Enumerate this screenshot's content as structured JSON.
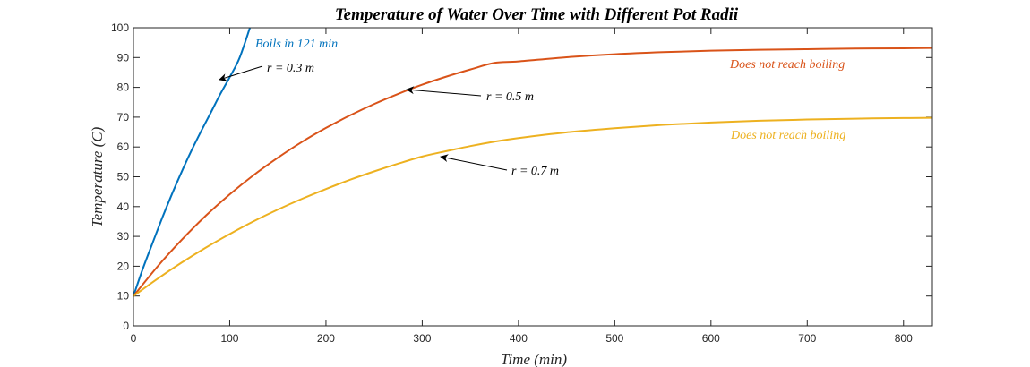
{
  "chart_data": {
    "type": "line",
    "title": "Temperature of Water Over Time with Different Pot Radii",
    "xlabel": "Time (min)",
    "ylabel": "Temperature (C)",
    "xlim": [
      0,
      830
    ],
    "ylim": [
      0,
      100
    ],
    "xticks": [
      0,
      100,
      200,
      300,
      400,
      500,
      600,
      700,
      800
    ],
    "yticks": [
      0,
      10,
      20,
      30,
      40,
      50,
      60,
      70,
      80,
      90,
      100
    ],
    "grid": false,
    "series": [
      {
        "name": "r = 0.3 m",
        "color": "#0072BD",
        "x": [
          0,
          10,
          20,
          30,
          40,
          50,
          60,
          70,
          80,
          90,
          100,
          110,
          121
        ],
        "y": [
          10,
          19.4,
          27.9,
          36.3,
          44.2,
          51.6,
          58.6,
          65.1,
          71.3,
          77.6,
          83.4,
          89.7,
          100
        ]
      },
      {
        "name": "r = 0.5 m",
        "color": "#D95319",
        "x": [
          0,
          25,
          50,
          75,
          100,
          125,
          150,
          175,
          200,
          225,
          250,
          275,
          300,
          325,
          350,
          375,
          400,
          450,
          500,
          550,
          600,
          650,
          700,
          750,
          800,
          830
        ],
        "y": [
          10,
          19.9,
          28.8,
          36.9,
          44.1,
          50.6,
          56.4,
          61.7,
          66.4,
          70.6,
          74.4,
          77.8,
          80.9,
          83.6,
          86.0,
          88.2,
          88.7,
          90.1,
          91.1,
          91.8,
          92.3,
          92.6,
          92.8,
          93.0,
          93.1,
          93.2
        ]
      },
      {
        "name": "r = 0.7 m",
        "color": "#EDB120",
        "x": [
          0,
          25,
          50,
          75,
          100,
          125,
          150,
          175,
          200,
          225,
          250,
          275,
          300,
          325,
          350,
          375,
          400,
          450,
          500,
          550,
          600,
          650,
          700,
          750,
          800,
          830
        ],
        "y": [
          10,
          15.8,
          21.2,
          26.2,
          30.8,
          35.1,
          39.0,
          42.6,
          45.9,
          49.0,
          51.8,
          54.4,
          56.8,
          58.6,
          60.3,
          61.8,
          63.0,
          64.9,
          66.3,
          67.4,
          68.2,
          68.8,
          69.2,
          69.5,
          69.7,
          69.8
        ]
      }
    ],
    "annotations": [
      {
        "text": "Boils in 121 min",
        "color": "#0072BD"
      },
      {
        "text": "r = 0.3 m",
        "color": "#000000"
      },
      {
        "text": "r = 0.5 m",
        "color": "#000000"
      },
      {
        "text": "r = 0.7 m",
        "color": "#000000"
      },
      {
        "text": "Does not reach boiling",
        "color": "#D95319"
      },
      {
        "text": "Does not reach boiling",
        "color": "#EDB120"
      }
    ]
  }
}
